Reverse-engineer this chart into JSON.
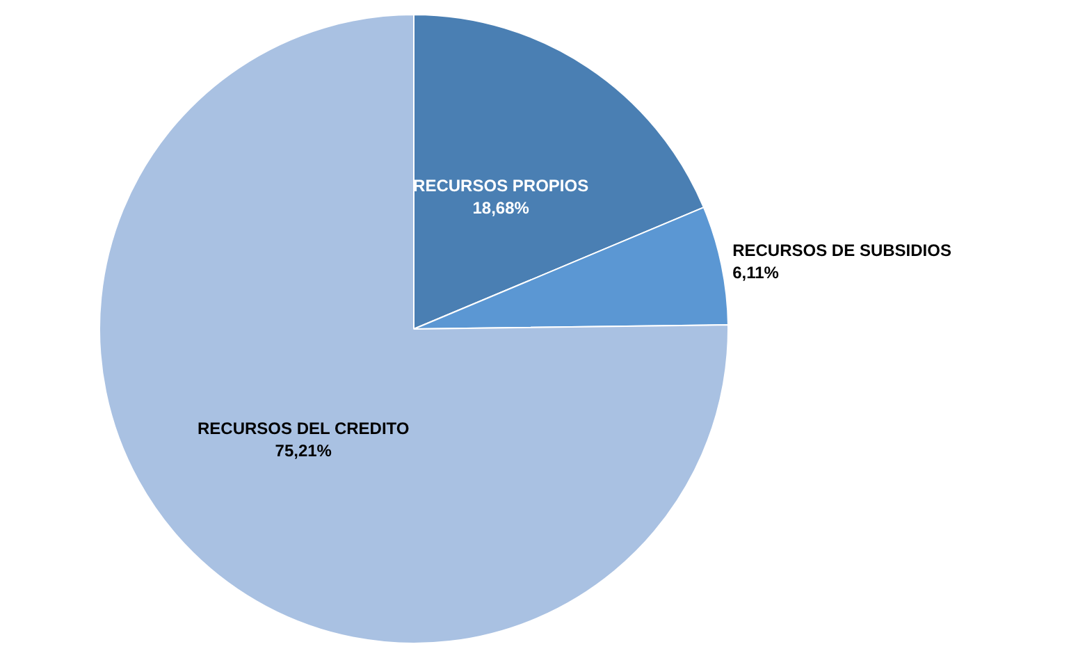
{
  "chart_data": {
    "type": "pie",
    "categories": [
      "RECURSOS PROPIOS",
      "RECURSOS DE SUBSIDIOS",
      "RECURSOS DEL CREDITO"
    ],
    "values": [
      18.68,
      6.11,
      75.21
    ],
    "colors": [
      "#4a7fb3",
      "#5b97d3",
      "#a9c1e2"
    ],
    "value_labels": [
      "18,68%",
      "6,11%",
      "75,21%"
    ],
    "legend": false
  }
}
